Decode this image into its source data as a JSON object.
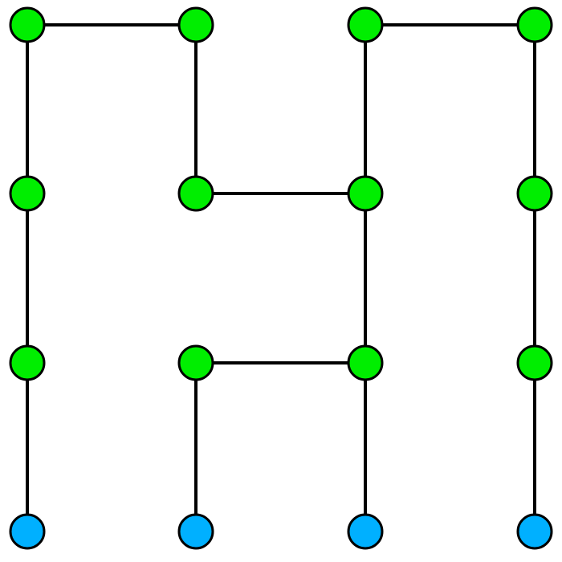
{
  "graph": {
    "grid": {
      "columns": 4,
      "rows": 4
    },
    "colors": {
      "edge": "#000000",
      "node_stroke": "#000000",
      "green": "#00ee00",
      "blue": "#00b0ff"
    },
    "nodes": [
      {
        "id": "n00",
        "col": 0,
        "row": 0,
        "color": "green"
      },
      {
        "id": "n10",
        "col": 1,
        "row": 0,
        "color": "green"
      },
      {
        "id": "n20",
        "col": 2,
        "row": 0,
        "color": "green"
      },
      {
        "id": "n30",
        "col": 3,
        "row": 0,
        "color": "green"
      },
      {
        "id": "n01",
        "col": 0,
        "row": 1,
        "color": "green"
      },
      {
        "id": "n11",
        "col": 1,
        "row": 1,
        "color": "green"
      },
      {
        "id": "n21",
        "col": 2,
        "row": 1,
        "color": "green"
      },
      {
        "id": "n31",
        "col": 3,
        "row": 1,
        "color": "green"
      },
      {
        "id": "n02",
        "col": 0,
        "row": 2,
        "color": "green"
      },
      {
        "id": "n12",
        "col": 1,
        "row": 2,
        "color": "green"
      },
      {
        "id": "n22",
        "col": 2,
        "row": 2,
        "color": "green"
      },
      {
        "id": "n32",
        "col": 3,
        "row": 2,
        "color": "green"
      },
      {
        "id": "n03",
        "col": 0,
        "row": 3,
        "color": "blue"
      },
      {
        "id": "n13",
        "col": 1,
        "row": 3,
        "color": "blue"
      },
      {
        "id": "n23",
        "col": 2,
        "row": 3,
        "color": "blue"
      },
      {
        "id": "n33",
        "col": 3,
        "row": 3,
        "color": "blue"
      }
    ],
    "edges": [
      [
        "n00",
        "n10"
      ],
      [
        "n20",
        "n30"
      ],
      [
        "n11",
        "n21"
      ],
      [
        "n12",
        "n22"
      ],
      [
        "n00",
        "n01"
      ],
      [
        "n01",
        "n02"
      ],
      [
        "n02",
        "n03"
      ],
      [
        "n10",
        "n11"
      ],
      [
        "n12",
        "n13"
      ],
      [
        "n20",
        "n21"
      ],
      [
        "n21",
        "n22"
      ],
      [
        "n22",
        "n23"
      ],
      [
        "n30",
        "n31"
      ],
      [
        "n31",
        "n32"
      ],
      [
        "n32",
        "n33"
      ]
    ]
  }
}
